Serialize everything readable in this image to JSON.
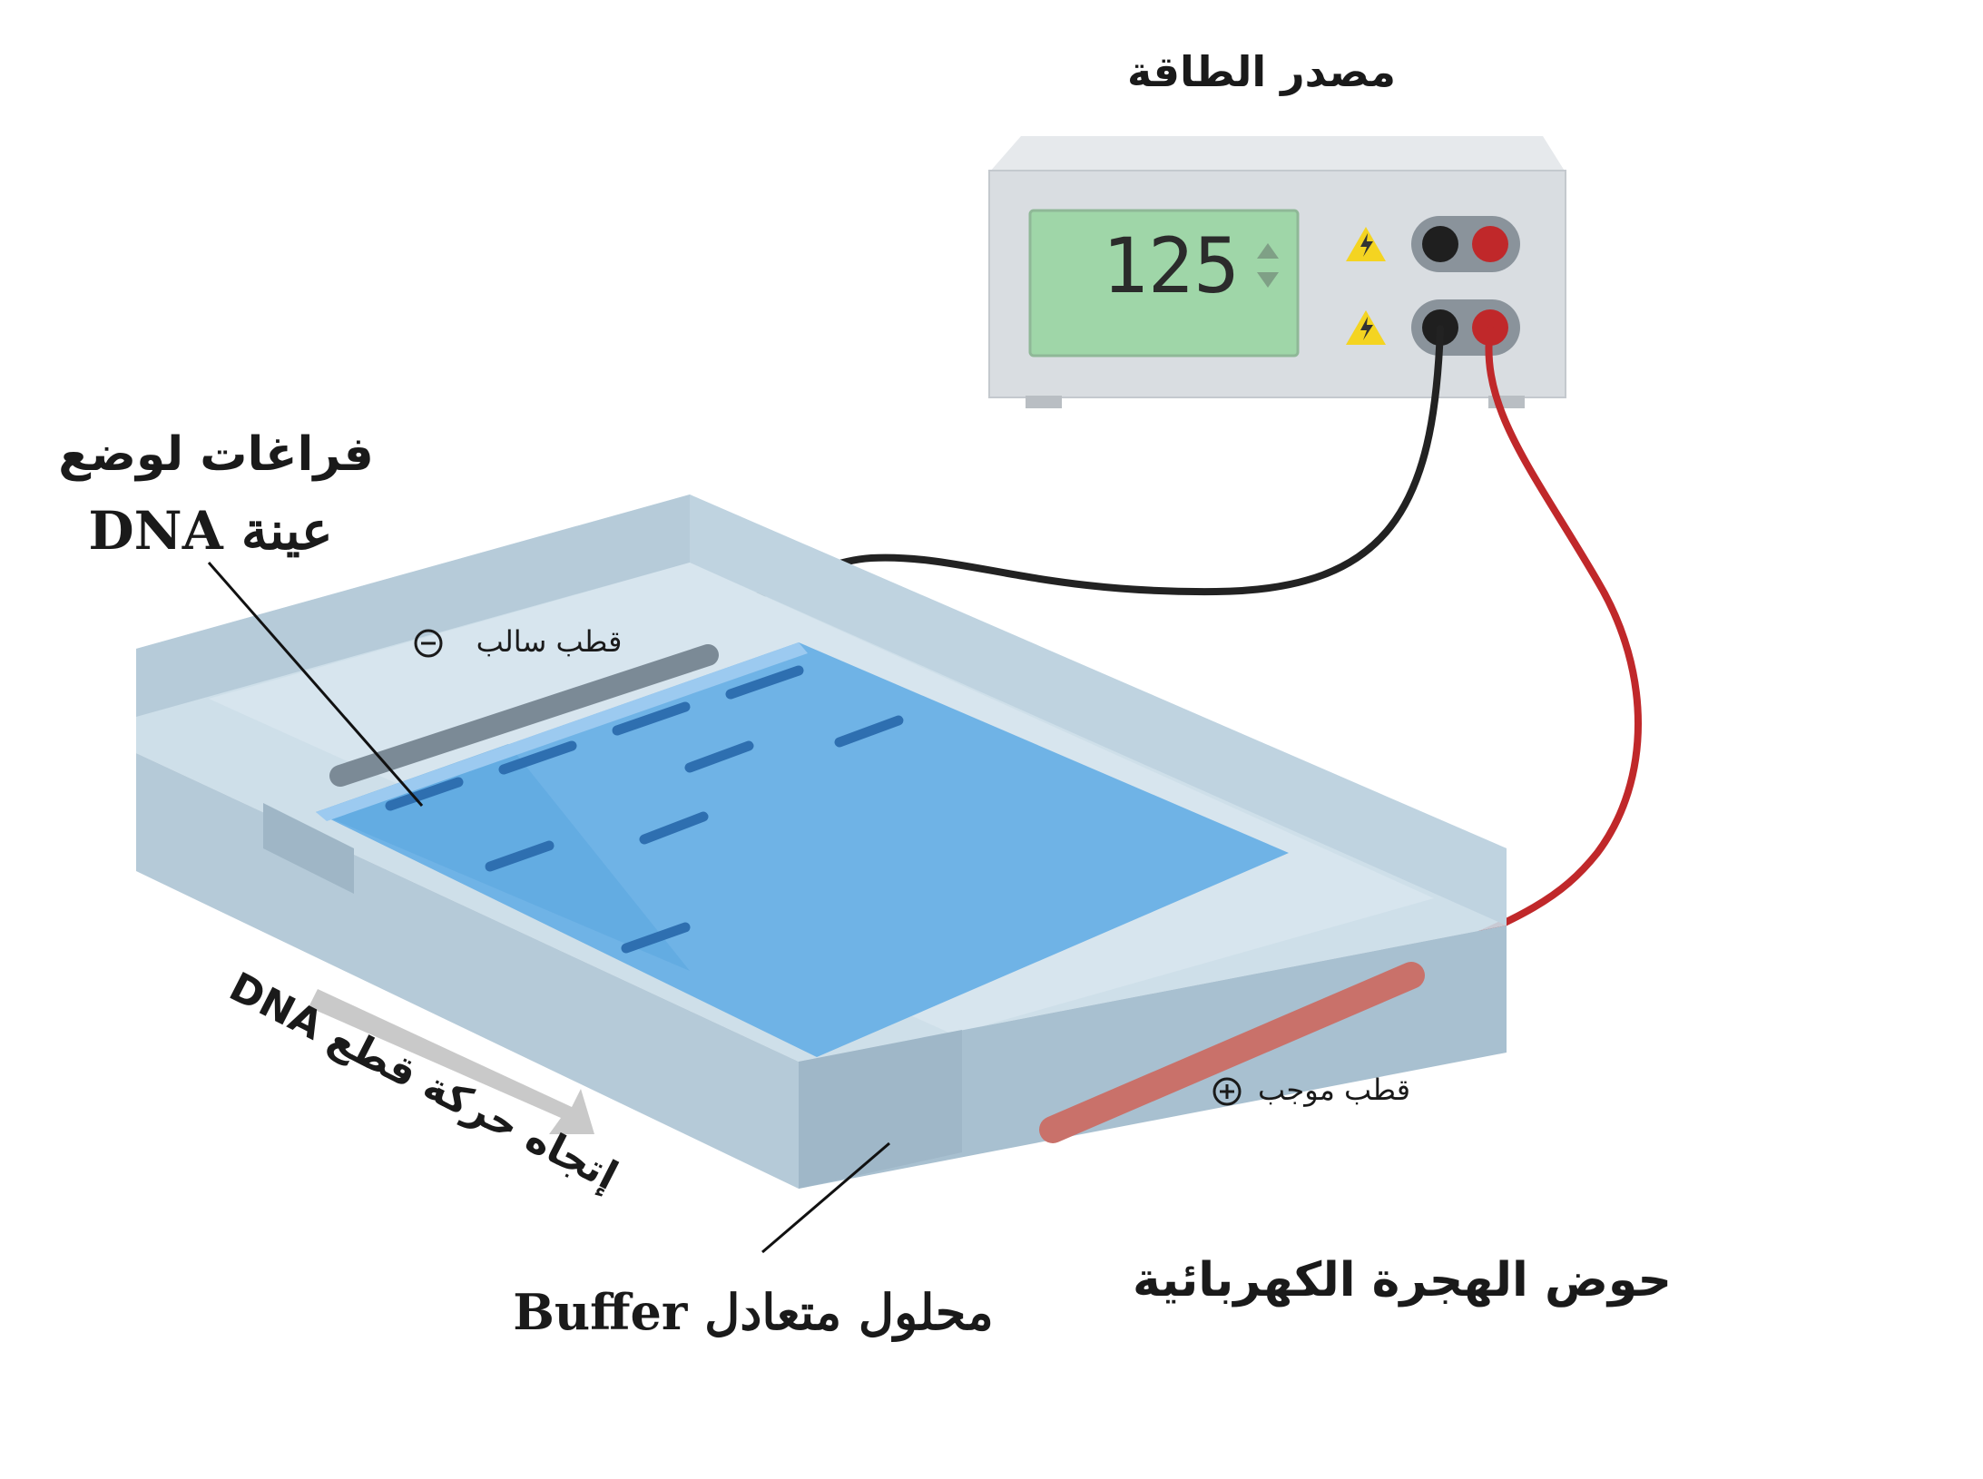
{
  "labels": {
    "power_source": "مصدر الطاقة",
    "display_value": "125",
    "sample_wells_line1": "فراغات لوضع",
    "sample_wells_line2": "عينة DNA",
    "negative_pole": "قطب سالب",
    "positive_pole": "قطب موجب",
    "dna_direction": "إتجاه حركة قطع DNA",
    "buffer": "محلول متعادل Buffer",
    "tank": "حوض الهجرة الكهربائية"
  },
  "icons": {
    "minus": "minus-circle-icon",
    "plus": "plus-circle-icon",
    "warning": "high-voltage-warning-icon",
    "arrows": "up-down-arrows-icon"
  },
  "colors": {
    "tank": "#bcd3e2",
    "gel": "#6fb3e6",
    "bands": "#2e6fb0",
    "red_wire": "#c0282a",
    "black_wire": "#222222",
    "lcd": "#9fd6a8",
    "electrode_neg": "#7b8a96",
    "electrode_pos": "#c9716a"
  }
}
